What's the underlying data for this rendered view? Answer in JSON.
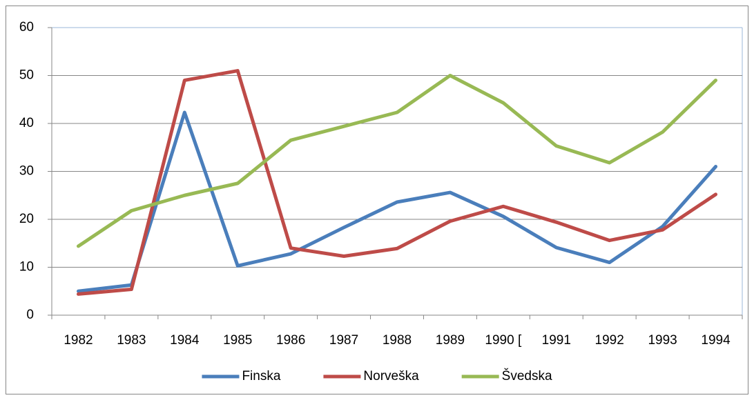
{
  "chart_data": {
    "type": "line",
    "categories": [
      "1982",
      "1983",
      "1984",
      "1985",
      "1986",
      "1987",
      "1988",
      "1989",
      "1990 [",
      "1991",
      "1992",
      "1993",
      "1994"
    ],
    "series": [
      {
        "name": "Finska",
        "color": "#4a7ebb",
        "values": [
          5,
          6.3,
          42.3,
          10.3,
          12.8,
          18.3,
          23.6,
          25.6,
          20.6,
          14.1,
          11,
          18.5,
          31
        ]
      },
      {
        "name": "Norveška",
        "color": "#be4b48",
        "values": [
          4.4,
          5.4,
          49,
          51,
          14,
          12.3,
          13.9,
          19.6,
          22.7,
          19.4,
          15.6,
          17.8,
          25.2
        ]
      },
      {
        "name": "Švedska",
        "color": "#98b954",
        "values": [
          14.4,
          21.8,
          25,
          27.5,
          36.5,
          39.4,
          42.3,
          50,
          44.3,
          35.3,
          31.8,
          38.2,
          49
        ]
      }
    ],
    "ylim": [
      0,
      60
    ],
    "yticks": [
      0,
      10,
      20,
      30,
      40,
      50,
      60
    ],
    "grid": true,
    "legend": "bottom"
  }
}
